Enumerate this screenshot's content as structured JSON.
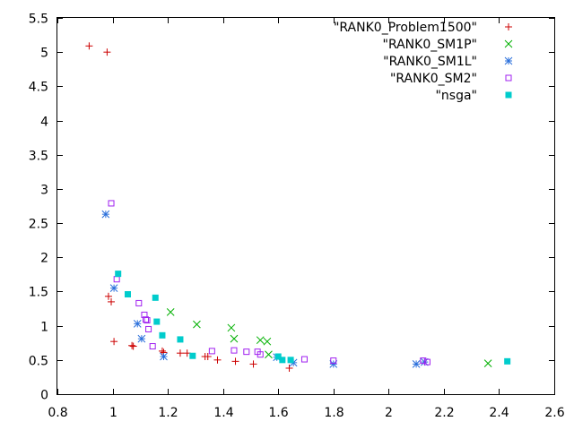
{
  "chart_data": {
    "type": "scatter",
    "title": "",
    "xlabel": "",
    "ylabel": "",
    "xlim": [
      0.8,
      2.6
    ],
    "ylim": [
      0,
      5.5
    ],
    "xticks": [
      "0.8",
      "1",
      "1.2",
      "1.4",
      "1.6",
      "1.8",
      "2",
      "2.2",
      "2.4",
      "2.6"
    ],
    "yticks": [
      "0",
      "0.5",
      "1",
      "1.5",
      "2",
      "2.5",
      "3",
      "3.5",
      "4",
      "4.5",
      "5",
      "5.5"
    ],
    "grid": false,
    "legend_position": "top-right",
    "series": [
      {
        "name": "\"RANK0_Problem1500\"",
        "marker": "plus",
        "color": "#cc0000",
        "points": [
          [
            0.915,
            5.09
          ],
          [
            0.98,
            5.0
          ],
          [
            0.985,
            1.43
          ],
          [
            0.995,
            1.35
          ],
          [
            1.005,
            0.77
          ],
          [
            1.07,
            0.71
          ],
          [
            1.075,
            0.7
          ],
          [
            1.18,
            0.63
          ],
          [
            1.185,
            0.61
          ],
          [
            1.245,
            0.6
          ],
          [
            1.27,
            0.6
          ],
          [
            1.335,
            0.55
          ],
          [
            1.345,
            0.55
          ],
          [
            1.38,
            0.5
          ],
          [
            1.445,
            0.48
          ],
          [
            1.51,
            0.44
          ],
          [
            1.64,
            0.38
          ]
        ]
      },
      {
        "name": "\"RANK0_SM1P\"",
        "marker": "cross",
        "color": "#00b000",
        "points": [
          [
            1.21,
            1.2
          ],
          [
            1.305,
            1.02
          ],
          [
            1.43,
            0.97
          ],
          [
            1.44,
            0.81
          ],
          [
            1.535,
            0.79
          ],
          [
            1.56,
            0.77
          ],
          [
            1.565,
            0.58
          ],
          [
            2.36,
            0.45
          ]
        ]
      },
      {
        "name": "\"RANK0_SM1L\"",
        "marker": "star",
        "color": "#2a6fdb",
        "points": [
          [
            0.975,
            2.63
          ],
          [
            1.005,
            1.55
          ],
          [
            1.09,
            1.03
          ],
          [
            1.105,
            0.81
          ],
          [
            1.185,
            0.55
          ],
          [
            1.595,
            0.54
          ],
          [
            1.655,
            0.46
          ],
          [
            1.8,
            0.44
          ],
          [
            2.1,
            0.44
          ],
          [
            2.13,
            0.47
          ]
        ]
      },
      {
        "name": "\"RANK0_SM2\"",
        "marker": "square-open",
        "color": "#a020f0",
        "points": [
          [
            0.995,
            2.79
          ],
          [
            1.015,
            1.68
          ],
          [
            1.095,
            1.33
          ],
          [
            1.115,
            1.16
          ],
          [
            1.12,
            1.09
          ],
          [
            1.125,
            1.08
          ],
          [
            1.13,
            0.95
          ],
          [
            1.145,
            0.7
          ],
          [
            1.36,
            0.63
          ],
          [
            1.44,
            0.64
          ],
          [
            1.485,
            0.62
          ],
          [
            1.525,
            0.62
          ],
          [
            1.535,
            0.58
          ],
          [
            1.695,
            0.51
          ],
          [
            1.8,
            0.49
          ],
          [
            2.125,
            0.49
          ],
          [
            2.14,
            0.47
          ]
        ]
      },
      {
        "name": "\"nsga\"",
        "marker": "square-filled",
        "color": "#00cccc",
        "points": [
          [
            1.02,
            1.76
          ],
          [
            1.055,
            1.46
          ],
          [
            1.155,
            1.41
          ],
          [
            1.16,
            1.06
          ],
          [
            1.18,
            0.86
          ],
          [
            1.245,
            0.8
          ],
          [
            1.29,
            0.56
          ],
          [
            1.6,
            0.55
          ],
          [
            1.615,
            0.5
          ],
          [
            1.645,
            0.5
          ],
          [
            2.43,
            0.48
          ]
        ]
      }
    ]
  }
}
